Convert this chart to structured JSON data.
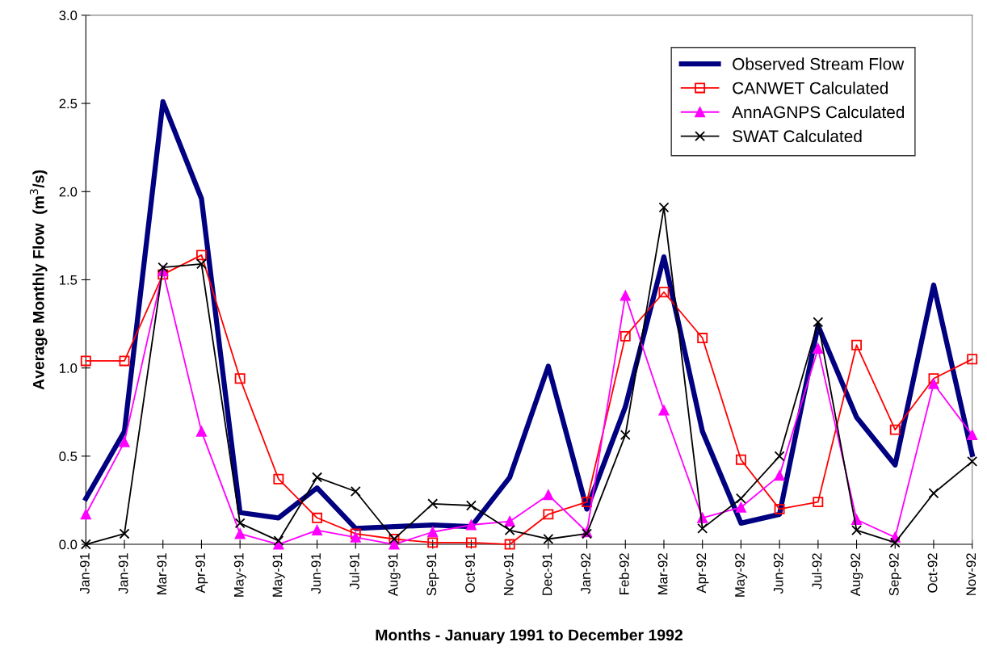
{
  "chart_data": {
    "type": "line",
    "xlabel": "Months - January 1991 to December 1992",
    "ylabel": "Average Monthly Flow  (m$^{3}$/s)",
    "categories": [
      "Jan-91",
      "Jan-91",
      "Mar-91",
      "Apr-91",
      "May-91",
      "May-91",
      "Jun-91",
      "Jul-91",
      "Aug-91",
      "Sep-91",
      "Oct-91",
      "Nov-91",
      "Dec-91",
      "Jan-92",
      "Feb-92",
      "Mar-92",
      "Apr-92",
      "May-92",
      "Jun-92",
      "Jul-92",
      "Aug-92",
      "Sep-92",
      "Oct-92",
      "Nov-92"
    ],
    "series": [
      {
        "name": "Observed Stream Flow",
        "color": "#000080",
        "marker": "none",
        "values": [
          0.26,
          0.64,
          2.51,
          1.96,
          0.18,
          0.15,
          0.32,
          0.09,
          0.1,
          0.11,
          0.1,
          0.38,
          1.01,
          0.2,
          0.78,
          1.63,
          0.64,
          0.12,
          0.17,
          1.24,
          0.72,
          0.45,
          1.47,
          0.51
        ]
      },
      {
        "name": "CANWET Calculated",
        "color": "#ff0000",
        "marker": "square",
        "values": [
          1.04,
          1.04,
          1.53,
          1.64,
          0.94,
          0.37,
          0.15,
          0.06,
          0.03,
          0.01,
          0.01,
          0.0,
          0.17,
          0.24,
          1.18,
          1.43,
          1.17,
          0.48,
          0.2,
          0.24,
          1.13,
          0.65,
          0.94,
          1.05
        ]
      },
      {
        "name": "AnnAGNPS Calculated",
        "color": "#ff00ff",
        "marker": "triangle",
        "values": [
          0.17,
          0.58,
          1.55,
          0.64,
          0.06,
          0.0,
          0.08,
          0.04,
          0.0,
          0.07,
          0.11,
          0.13,
          0.28,
          0.07,
          1.41,
          0.76,
          0.15,
          0.21,
          0.39,
          1.11,
          0.14,
          0.04,
          0.91,
          0.62
        ]
      },
      {
        "name": "SWAT Calculated",
        "color": "#000000",
        "marker": "cross",
        "values": [
          0.0,
          0.06,
          1.57,
          1.59,
          0.12,
          0.02,
          0.38,
          0.3,
          0.03,
          0.23,
          0.22,
          0.08,
          0.03,
          0.06,
          0.62,
          1.91,
          0.09,
          0.26,
          0.5,
          1.26,
          0.08,
          0.01,
          0.29,
          0.47
        ]
      }
    ],
    "ylim": [
      0,
      3
    ],
    "yticks": [
      {
        "value": 0,
        "label": "0.0"
      },
      {
        "value": 0.5,
        "label": "0.5"
      },
      {
        "value": 1,
        "label": "1.0"
      },
      {
        "value": 1.5,
        "label": "1.5"
      },
      {
        "value": 2,
        "label": "2.0"
      },
      {
        "value": 2.5,
        "label": "2.5"
      },
      {
        "value": 3,
        "label": "3.0"
      }
    ],
    "grid": false,
    "legend": "top right",
    "line_style": "solid"
  }
}
